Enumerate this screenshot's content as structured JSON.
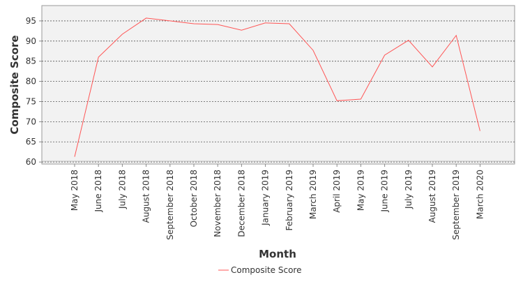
{
  "chart_data": {
    "type": "line",
    "xlabel": "Month",
    "ylabel": "Composite Score",
    "categories": [
      "May 2018",
      "June 2018",
      "July 2018",
      "August 2018",
      "September 2018",
      "October 2018",
      "November 2018",
      "December 2018",
      "January 2019",
      "February 2019",
      "March 2019",
      "April 2019",
      "May 2019",
      "June 2019",
      "July 2019",
      "August 2019",
      "September 2019",
      "March 2020"
    ],
    "series": [
      {
        "name": "Composite Score",
        "color": "#ff5555",
        "values": [
          61.3,
          86.0,
          91.7,
          95.7,
          95.0,
          94.3,
          94.1,
          92.7,
          94.5,
          94.3,
          87.7,
          75.2,
          75.6,
          86.5,
          90.2,
          83.6,
          91.4,
          67.7
        ]
      }
    ],
    "yticks": [
      60,
      65,
      70,
      75,
      80,
      85,
      90,
      95
    ],
    "ylim": [
      59.5,
      98.8
    ],
    "grid": true,
    "legend": "bottom"
  }
}
